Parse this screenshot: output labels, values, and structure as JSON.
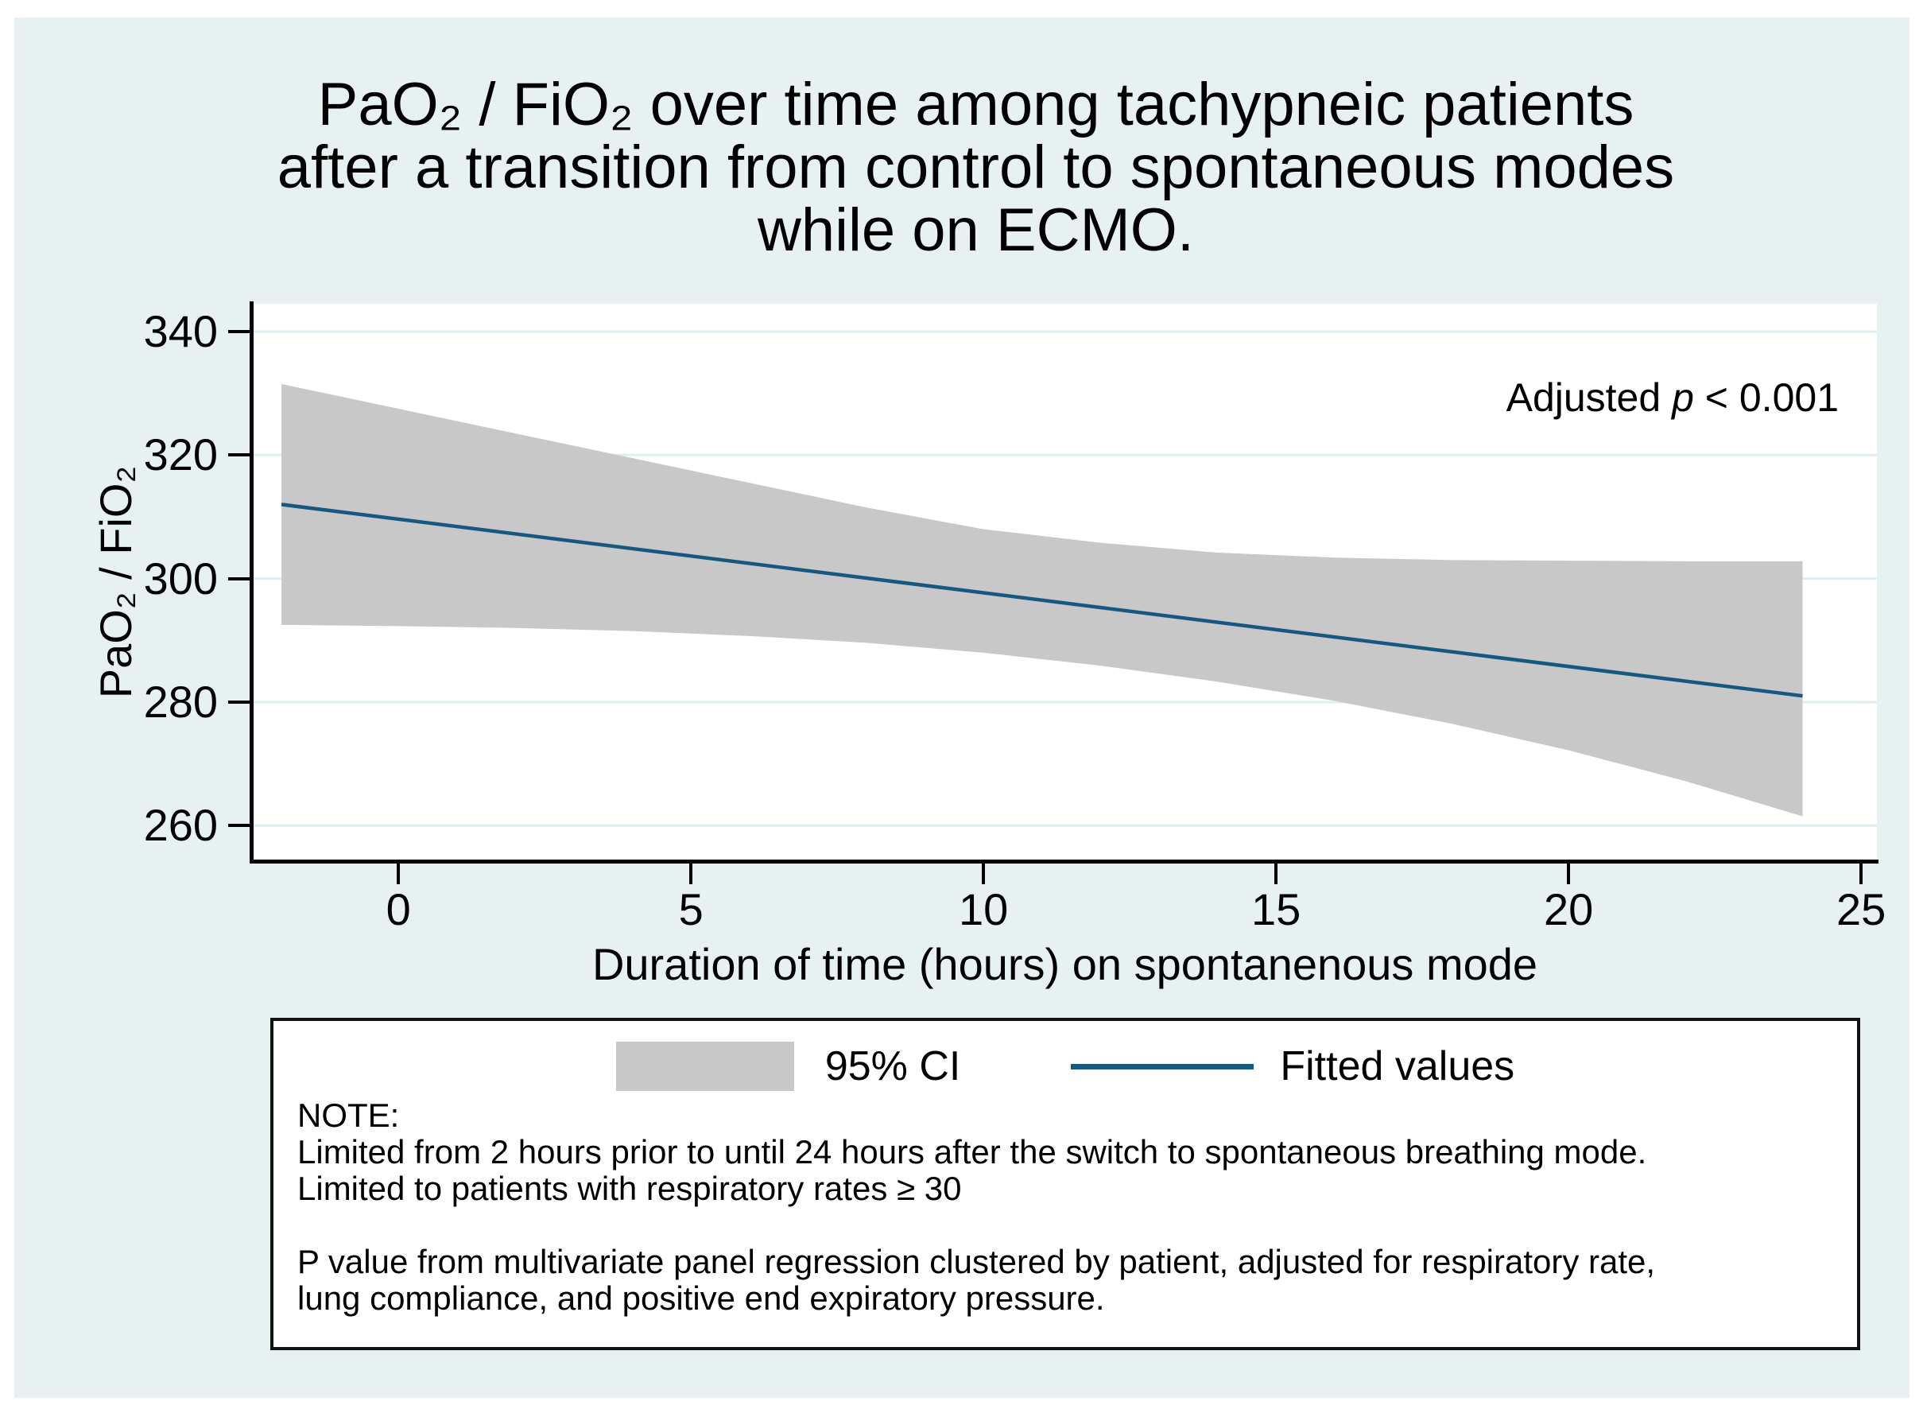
{
  "title": {
    "lines": [
      "PaO₂ / FiO₂ over time among tachypneic patients",
      "after a transition from control to spontaneous modes",
      "while on ECMO."
    ]
  },
  "annotation": {
    "prefix": "Adjusted ",
    "symbol": "p",
    "suffix": " < 0.001"
  },
  "axes": {
    "x": {
      "label": "Duration of time (hours) on spontanenous mode",
      "ticks": [
        0,
        5,
        10,
        15,
        20,
        25
      ]
    },
    "y": {
      "label": "PaO₂ / FiO₂",
      "ticks": [
        260,
        280,
        300,
        320,
        340
      ]
    }
  },
  "legend": {
    "ci_label": "95% CI",
    "fit_label": "Fitted values",
    "note_heading": "NOTE:",
    "note_lines": [
      "Limited from 2 hours prior to until 24 hours after the switch to spontaneous breathing mode.",
      "Limited to patients with respiratory rates ≥ 30",
      "P value from multivariate panel regression clustered by patient, adjusted for respiratory rate,",
      "lung compliance, and positive end expiratory pressure."
    ]
  },
  "colors": {
    "canvas": "#e7f1f1",
    "plot_bg": "#ffffff",
    "grid": "#dfeef2",
    "band": "#c8c8c8",
    "line": "#175880",
    "axis": "#000000"
  },
  "chart_data": {
    "type": "line",
    "title": "PaO₂ / FiO₂ over time among tachypneic patients after a transition from control to spontaneous modes while on ECMO.",
    "xlabel": "Duration of time (hours) on spontanenous mode",
    "ylabel": "PaO₂ / FiO₂",
    "xlim": [
      -2.49,
      25.27
    ],
    "ylim": [
      254.5,
      344.5
    ],
    "x_ticks": [
      0,
      5,
      10,
      15,
      20,
      25
    ],
    "y_ticks": [
      260,
      280,
      300,
      320,
      340
    ],
    "grid": "horizontal",
    "annotation": "Adjusted p < 0.001",
    "legend_position": "bottom-box",
    "series": [
      {
        "name": "Fitted values",
        "type": "line",
        "color": "#175880",
        "x": [
          -2,
          24
        ],
        "y": [
          312,
          281
        ]
      },
      {
        "name": "95% CI",
        "type": "band",
        "color": "#c8c8c8",
        "x": [
          -2,
          0,
          2,
          4,
          6,
          8,
          10,
          12,
          14,
          16,
          18,
          20,
          22,
          24
        ],
        "upper": [
          331.5,
          327.5,
          323.5,
          319.5,
          315.5,
          311.5,
          308.0,
          305.8,
          304.2,
          303.4,
          303.0,
          302.9,
          302.8,
          302.8
        ],
        "lower": [
          292.5,
          292.3,
          292.0,
          291.5,
          290.7,
          289.6,
          288.0,
          285.9,
          283.3,
          280.2,
          276.5,
          272.2,
          267.2,
          261.5
        ]
      }
    ]
  }
}
